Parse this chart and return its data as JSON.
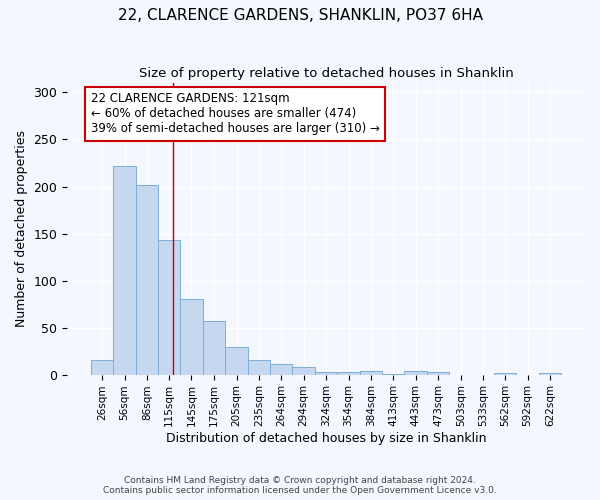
{
  "title": "22, CLARENCE GARDENS, SHANKLIN, PO37 6HA",
  "subtitle": "Size of property relative to detached houses in Shanklin",
  "xlabel": "Distribution of detached houses by size in Shanklin",
  "ylabel": "Number of detached properties",
  "bar_color": "#c5d8f0",
  "bar_edge_color": "#7aafd4",
  "background_color": "#f5f7ff",
  "axes_bg_color": "#f5f7ff",
  "grid_color": "#ffffff",
  "bin_labels": [
    "26sqm",
    "56sqm",
    "86sqm",
    "115sqm",
    "145sqm",
    "175sqm",
    "205sqm",
    "235sqm",
    "264sqm",
    "294sqm",
    "324sqm",
    "354sqm",
    "384sqm",
    "413sqm",
    "443sqm",
    "473sqm",
    "503sqm",
    "533sqm",
    "562sqm",
    "592sqm",
    "622sqm"
  ],
  "bar_heights": [
    15,
    222,
    202,
    143,
    80,
    57,
    29,
    15,
    11,
    8,
    3,
    3,
    4,
    1,
    4,
    3,
    0,
    0,
    2,
    0,
    2
  ],
  "bin_edges": [
    11,
    41,
    71,
    100.5,
    130,
    160,
    190,
    220,
    249.5,
    279,
    309,
    339,
    369,
    398.5,
    428,
    458,
    488,
    518,
    547.5,
    577,
    607,
    637
  ],
  "red_line_x": 121,
  "ylim": [
    0,
    310
  ],
  "yticks": [
    0,
    50,
    100,
    150,
    200,
    250,
    300
  ],
  "annotation_text": "22 CLARENCE GARDENS: 121sqm\n← 60% of detached houses are smaller (474)\n39% of semi-detached houses are larger (310) →",
  "annotation_box_color": "#ffffff",
  "annotation_box_edge_color": "#cc0000",
  "red_line_color": "#cc0000",
  "footnote": "Contains HM Land Registry data © Crown copyright and database right 2024.\nContains public sector information licensed under the Open Government Licence v3.0."
}
